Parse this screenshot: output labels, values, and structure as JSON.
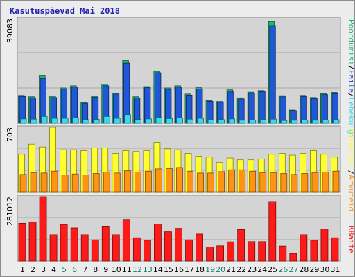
{
  "chart_data": {
    "type": "bar",
    "title": "Kasutuspäevad Mai 2018",
    "categories": [
      "1",
      "2",
      "3",
      "4",
      "5",
      "6",
      "7",
      "8",
      "9",
      "10",
      "11",
      "12",
      "13",
      "14",
      "15",
      "16",
      "17",
      "18",
      "19",
      "20",
      "21",
      "22",
      "23",
      "24",
      "25",
      "26",
      "27",
      "28",
      "29",
      "30",
      "31"
    ],
    "weekend_days": [
      5,
      6,
      12,
      13,
      19,
      20,
      26,
      27
    ],
    "colors": {
      "hits": "#21b76b",
      "files": "#1f57d6",
      "pages": "#38d9ea",
      "visits": "#ffff30",
      "sites": "#ff9414",
      "kbytes": "#ff1a1a",
      "weekday_label": "#000000",
      "weekend_label": "#10806a"
    },
    "panels": [
      {
        "max_label": "39083",
        "ylim": [
          0,
          39083
        ],
        "series": [
          {
            "name": "Pöördumisi",
            "key": "hits",
            "values": [
              10400,
              9900,
              17800,
              10100,
              13200,
              14000,
              7800,
              10100,
              14600,
              11300,
              23500,
              9900,
              13700,
              19400,
              13200,
              14000,
              10900,
              13300,
              8500,
              8100,
              12500,
              9500,
              11600,
              12200,
              38000,
              10300,
              4900,
              10400,
              9600,
              11100,
              11500
            ]
          },
          {
            "name": "Faile",
            "key": "files",
            "values": [
              10000,
              9500,
              16800,
              9600,
              12800,
              13500,
              7500,
              9700,
              14000,
              10900,
              22500,
              9500,
              13300,
              18900,
              12700,
              13500,
              10500,
              12800,
              8200,
              7800,
              11700,
              9100,
              11200,
              11800,
              36500,
              9900,
              4700,
              10000,
              9200,
              10700,
              11000
            ]
          },
          {
            "name": "Lehekülgi",
            "key": "pages",
            "values": [
              1600,
              1500,
              2500,
              1800,
              1800,
              2000,
              1300,
              1400,
              2500,
              1800,
              3200,
              1400,
              1600,
              2200,
              1700,
              2000,
              1500,
              1800,
              1200,
              1300,
              1600,
              1100,
              1200,
              1300,
              1500,
              1000,
              1100,
              1200,
              1100,
              1200,
              1300
            ]
          }
        ]
      },
      {
        "max_label": "703",
        "ylim": [
          0,
          703
        ],
        "series": [
          {
            "name": "Külastusi",
            "key": "visits",
            "values": [
              410,
              520,
              490,
              703,
              460,
              460,
              450,
              480,
              480,
              420,
              450,
              440,
              450,
              540,
              470,
              460,
              420,
              390,
              380,
              320,
              370,
              350,
              350,
              360,
              410,
              420,
              400,
              420,
              450,
              410,
              380
            ]
          },
          {
            "name": "Arvuteid",
            "key": "sites",
            "values": [
              190,
              210,
              205,
              225,
              185,
              195,
              185,
              200,
              215,
              205,
              230,
              215,
              225,
              250,
              255,
              265,
              225,
              205,
              205,
              220,
              240,
              240,
              225,
              210,
              210,
              200,
              190,
              200,
              210,
              215,
              225
            ]
          }
        ]
      },
      {
        "max_label": "281012",
        "ylim": [
          0,
          281012
        ],
        "series": [
          {
            "name": "KBaite",
            "key": "kbytes",
            "values": [
              165000,
              170000,
              281012,
              115000,
              160000,
              145000,
              115000,
              93000,
              150000,
              115000,
              182000,
              102000,
              91000,
              162000,
              128000,
              143000,
              93000,
              118000,
              62000,
              67000,
              84000,
              138000,
              85000,
              85000,
              260000,
              66000,
              33000,
              115000,
              91000,
              140000,
              102000
            ]
          }
        ]
      }
    ],
    "right_axis_label": {
      "top": [
        "Pöördumisi",
        "/",
        "Faile",
        "/",
        "Lehekülgi"
      ],
      "middle": [
        "Külastusi",
        "/",
        "Arvuteid"
      ],
      "bottom": [
        "KBaite"
      ]
    }
  }
}
